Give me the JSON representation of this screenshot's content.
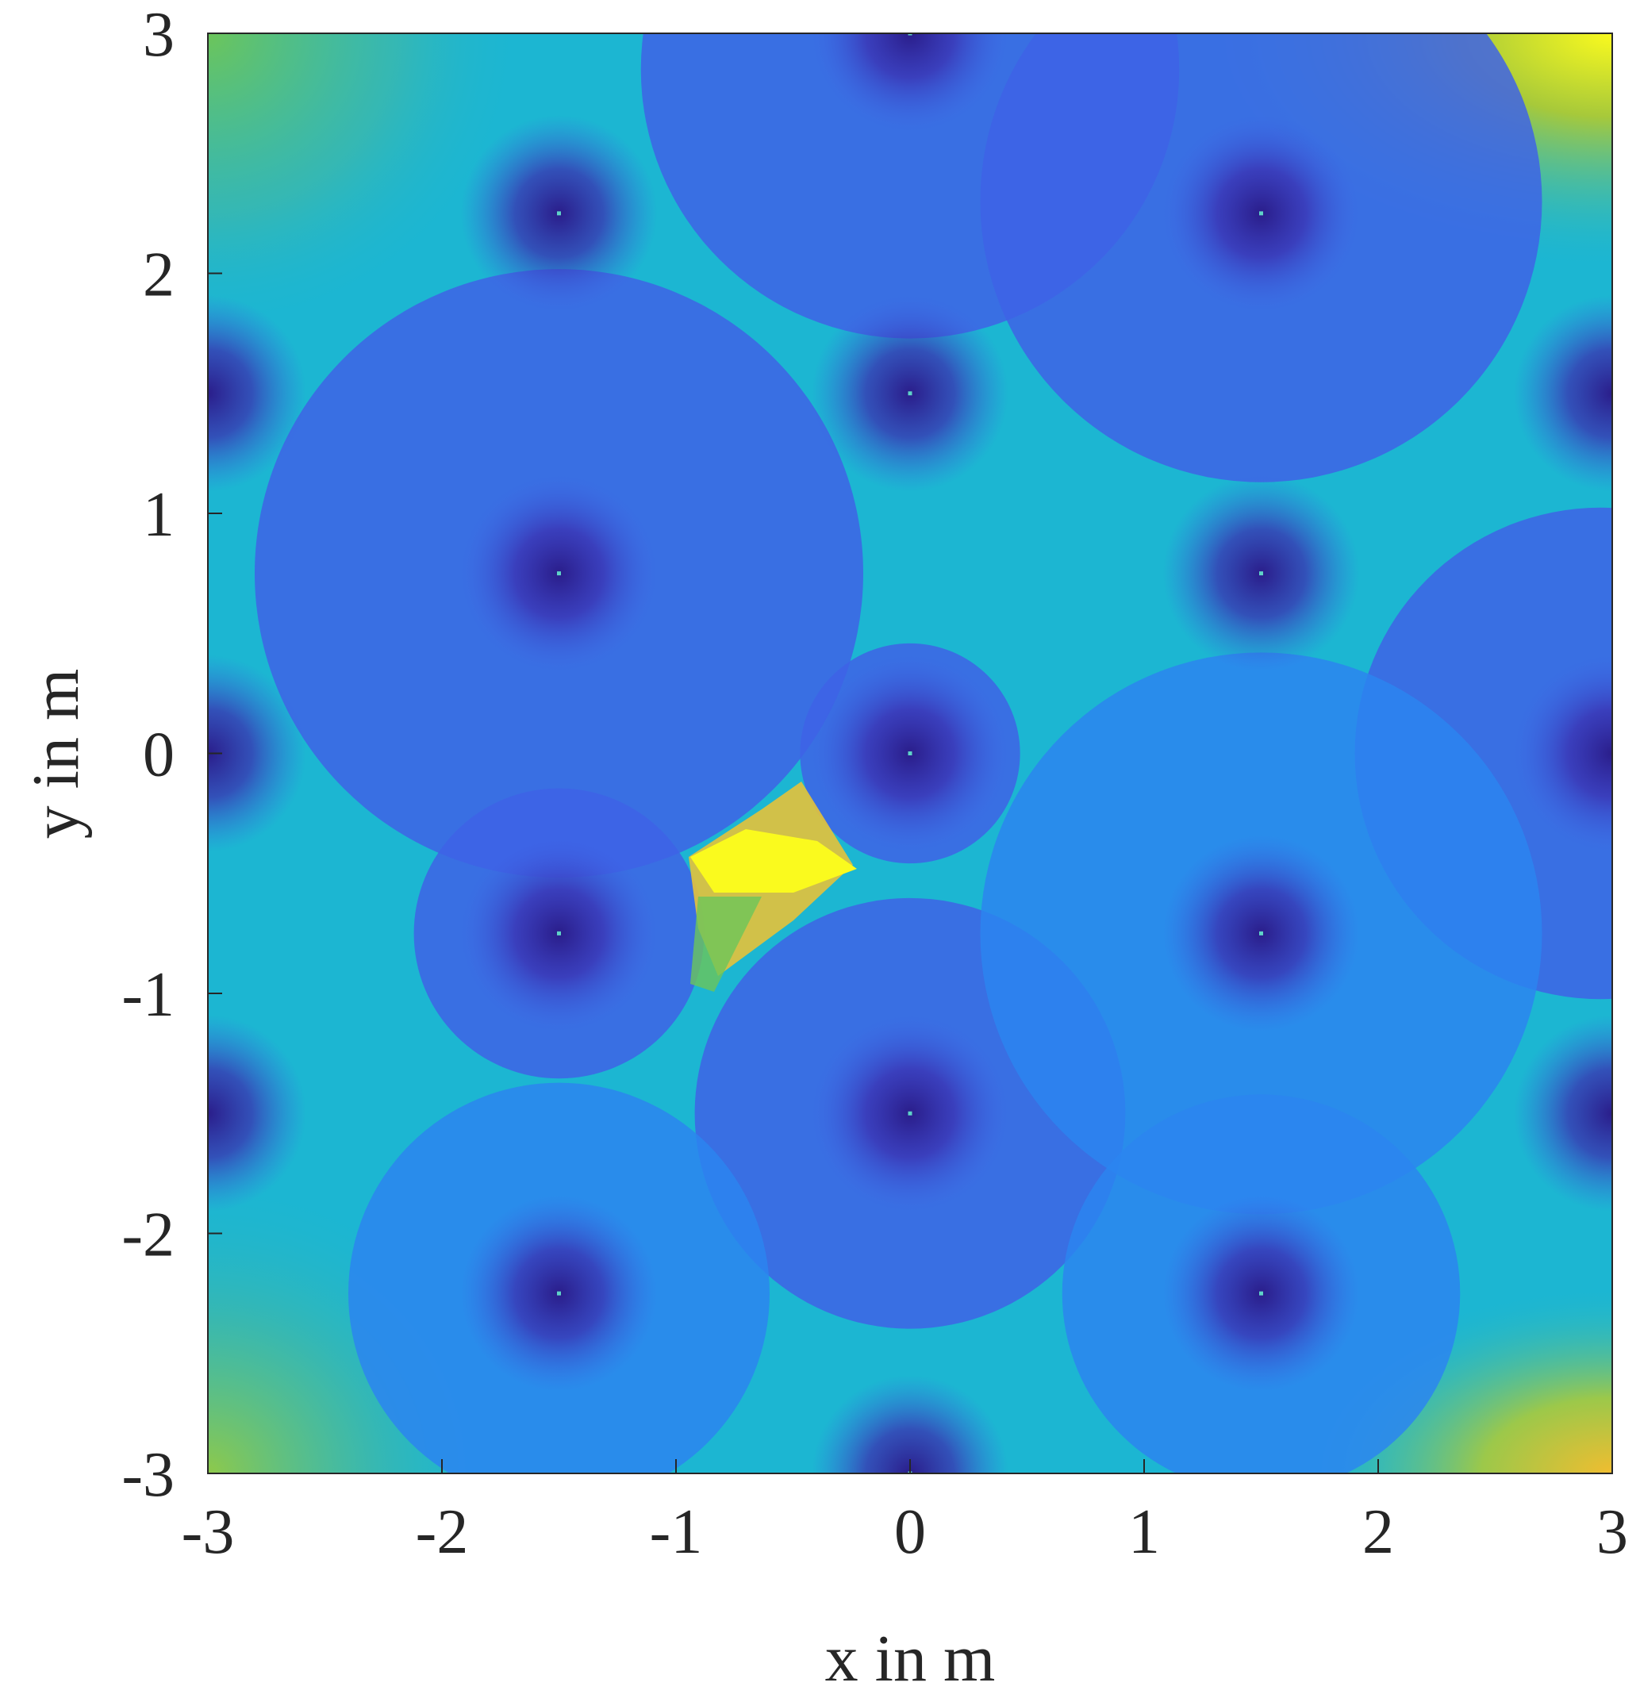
{
  "chart_data": {
    "type": "heatmap",
    "title": "",
    "xlabel": "x in m",
    "ylabel": "y in m",
    "xlim": [
      -3,
      3
    ],
    "ylim": [
      -3,
      3
    ],
    "x_ticks": [
      -3,
      -2,
      -1,
      0,
      1,
      2,
      3
    ],
    "y_ticks": [
      -3,
      -2,
      -1,
      0,
      1,
      2,
      3
    ],
    "x_tick_labels": [
      "-3",
      "-2",
      "-1",
      "0",
      "1",
      "2",
      "3"
    ],
    "y_tick_labels": [
      "-3",
      "-2",
      "-1",
      "0",
      "1",
      "2",
      "3"
    ],
    "grid": false,
    "legend": "none",
    "colormap": "parula",
    "colors": {
      "min": "#3b2fa0",
      "low": "#3e63e6",
      "mid_low": "#2b85f0",
      "mid": "#1cb6d2",
      "mid_high": "#6cc55a",
      "high": "#e6c23a",
      "max": "#fafa1e"
    },
    "source_points": [
      {
        "x": -1.5,
        "y": 2.25
      },
      {
        "x": 1.5,
        "y": 2.25
      },
      {
        "x": 0,
        "y": 1.5
      },
      {
        "x": -1.5,
        "y": 0.75
      },
      {
        "x": 1.5,
        "y": 0.75
      },
      {
        "x": 0,
        "y": 0
      },
      {
        "x": -1.5,
        "y": -0.75
      },
      {
        "x": 1.5,
        "y": -0.75
      },
      {
        "x": 0,
        "y": -1.5
      },
      {
        "x": -1.5,
        "y": -2.25
      },
      {
        "x": 1.5,
        "y": -2.25
      },
      {
        "x": 0,
        "y": 3
      },
      {
        "x": 0,
        "y": -3
      },
      {
        "x": -3,
        "y": 1.5
      },
      {
        "x": 3,
        "y": 1.5
      },
      {
        "x": -3,
        "y": 0
      },
      {
        "x": 3,
        "y": 0
      },
      {
        "x": -3,
        "y": -1.5
      },
      {
        "x": 3,
        "y": -1.5
      }
    ],
    "zones": [
      {
        "cx": 0,
        "cy": 0,
        "r": 0.47,
        "level": "low"
      },
      {
        "cx": -1.5,
        "cy": -0.75,
        "r": 0.62,
        "level": "low"
      },
      {
        "cx": 0,
        "cy": -1.5,
        "r": 0.92,
        "level": "low"
      },
      {
        "cx": -1.5,
        "cy": 0.75,
        "r": 1.3,
        "level": "low"
      },
      {
        "cx": 0,
        "cy": 2.85,
        "r": 1.15,
        "level": "low"
      },
      {
        "cx": 1.5,
        "cy": 2.3,
        "r": 1.2,
        "level": "low"
      },
      {
        "cx": 2.95,
        "cy": 0,
        "r": 1.05,
        "level": "low"
      },
      {
        "cx": 1.5,
        "cy": -0.75,
        "r": 1.2,
        "level": "mid_low"
      },
      {
        "cx": -1.5,
        "cy": -2.25,
        "r": 0.9,
        "level": "mid_low"
      },
      {
        "cx": 1.5,
        "cy": -2.25,
        "r": 0.85,
        "level": "mid_low"
      }
    ]
  }
}
